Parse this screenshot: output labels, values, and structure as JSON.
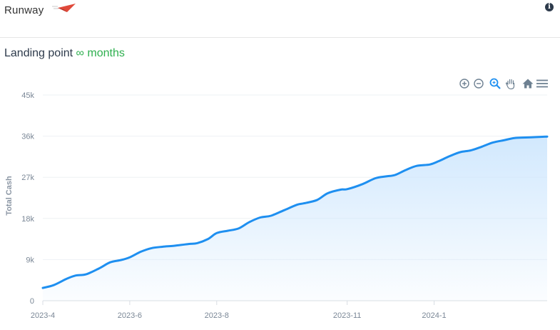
{
  "app": {
    "title": "Runway"
  },
  "header": {
    "logo_icon": "red-paper-plane-logo",
    "info_icon": "info-icon"
  },
  "subtitle": {
    "label": "Landing point",
    "value": "∞ months"
  },
  "toolbar": {
    "icons": [
      "zoom-in-icon",
      "zoom-out-icon",
      "selection-zoom-icon",
      "pan-icon",
      "reset-home-icon",
      "menu-icon"
    ]
  },
  "chart_data": {
    "type": "area",
    "title": "",
    "xlabel": "",
    "ylabel": "Total Cash",
    "ylim": [
      0,
      45000
    ],
    "y_ticks": [
      0,
      9000,
      18000,
      27000,
      36000,
      45000
    ],
    "y_tick_labels": [
      "0",
      "9k",
      "18k",
      "27k",
      "36k",
      "45k"
    ],
    "x_tick_labels": [
      "2023-4",
      "2023-6",
      "2023-8",
      "2023-11",
      "2024-1"
    ],
    "x_tick_months": [
      0,
      2,
      4,
      7,
      9
    ],
    "x_range_months": [
      0,
      11.6
    ],
    "grid": true,
    "colors": {
      "line": "#1e8ff0",
      "fill": "#cfe7fd"
    },
    "series": [
      {
        "x_months": [
          0,
          0.25,
          0.55,
          0.75,
          1.0,
          1.3,
          1.55,
          1.8,
          2.0,
          2.25,
          2.5,
          2.75,
          3.0,
          3.35,
          3.55,
          3.8,
          4.0,
          4.25,
          4.5,
          4.75,
          5.0,
          5.25,
          5.55,
          5.85,
          6.0,
          6.3,
          6.55,
          6.85,
          7.0,
          7.35,
          7.65,
          7.9,
          8.1,
          8.35,
          8.6,
          8.9,
          9.1,
          9.35,
          9.6,
          9.85,
          10.1,
          10.35,
          10.6,
          10.85,
          11.1,
          11.35,
          11.6
        ],
        "values": [
          2800,
          3400,
          4800,
          5500,
          5800,
          7100,
          8400,
          8900,
          9500,
          10700,
          11500,
          11800,
          12000,
          12400,
          12600,
          13500,
          14800,
          15300,
          15800,
          17200,
          18200,
          18600,
          19800,
          21000,
          21300,
          22000,
          23500,
          24300,
          24400,
          25500,
          26800,
          27200,
          27500,
          28600,
          29500,
          29800,
          30500,
          31600,
          32500,
          32900,
          33700,
          34600,
          35100,
          35600,
          35700,
          35800,
          35900
        ]
      }
    ]
  }
}
